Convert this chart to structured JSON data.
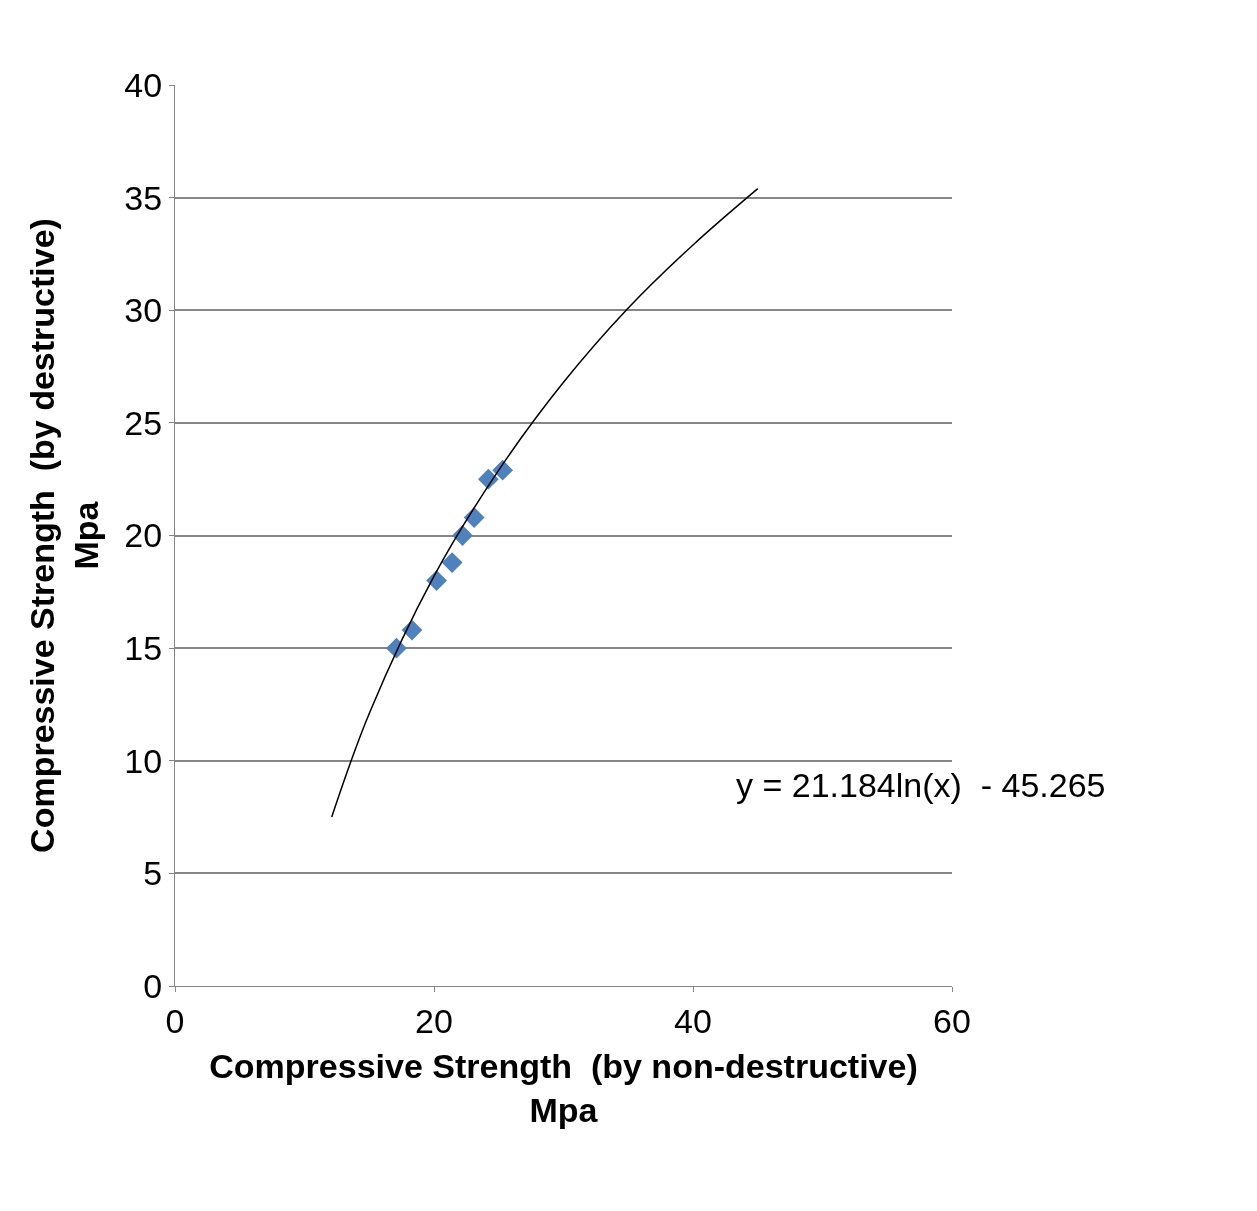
{
  "chart_data": {
    "type": "scatter",
    "xlabel": "Compressive Strength  (by non-destructive)\nMpa",
    "ylabel": "Compressive Strength  (by destructive)\nMpa",
    "xlim": [
      0,
      60
    ],
    "xticks": [
      0,
      20,
      40,
      60
    ],
    "ylim": [
      0,
      40
    ],
    "yticks": [
      0,
      5,
      10,
      15,
      20,
      25,
      30,
      35,
      40
    ],
    "grid": "y",
    "marker": "diamond",
    "series": [
      {
        "color": "#4f81bd",
        "x": [
          17.1,
          18.3,
          20.2,
          21.4,
          22.2,
          23.1,
          24.2,
          25.3
        ],
        "values": [
          15.0,
          15.8,
          18.0,
          18.8,
          20.0,
          20.8,
          22.5,
          22.9
        ]
      },
      {
        "type": "line",
        "color": "#000000",
        "marker": "none",
        "x": [
          12.1,
          15,
          20,
          25,
          30,
          35,
          40,
          45
        ],
        "values": [
          7.5,
          12.1,
          18.2,
          22.9,
          26.8,
          30.1,
          32.9,
          35.4
        ]
      }
    ],
    "annotations": [
      "y = 21.184ln(x)  - 45.265"
    ]
  }
}
